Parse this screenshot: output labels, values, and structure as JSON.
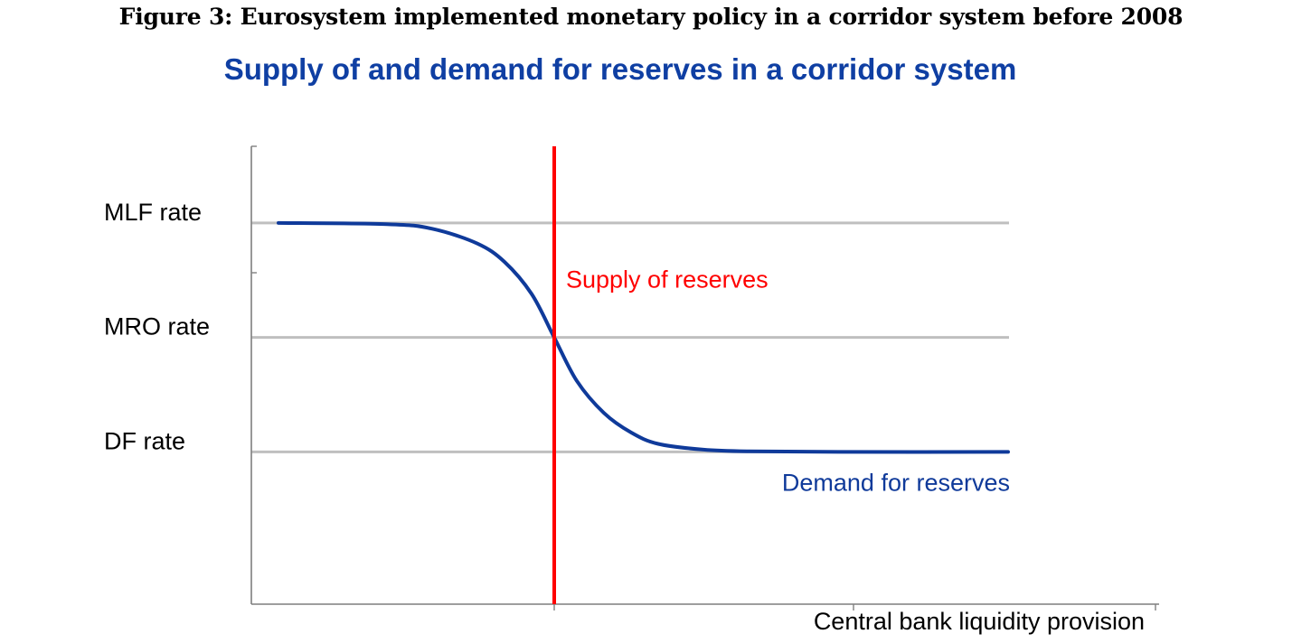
{
  "figure_caption": "Figure 3: Eurosystem implemented monetary policy in a corridor system before 2008",
  "chart_data": {
    "type": "line",
    "title": "Supply of and demand for reserves in a corridor system",
    "xlabel": "Central bank liquidity provision",
    "ylabel": "",
    "grid": false,
    "rate_levels": [
      {
        "label": "MLF rate",
        "level": 2
      },
      {
        "label": "MRO rate",
        "level": 1
      },
      {
        "label": "DF rate",
        "level": 0
      }
    ],
    "ylim": [
      -1.33,
      2.67
    ],
    "xlim": [
      0,
      1
    ],
    "series": [
      {
        "name": "Supply of reserves",
        "kind": "vertical",
        "x": 0.335,
        "color": "#ff0000"
      },
      {
        "name": "Demand for reserves",
        "kind": "curve",
        "x": [
          0.03,
          0.15,
          0.2,
          0.25,
          0.28,
          0.31,
          0.335,
          0.36,
          0.39,
          0.42,
          0.45,
          0.5,
          0.55,
          0.65,
          0.837
        ],
        "y": [
          2.0,
          1.99,
          1.95,
          1.82,
          1.66,
          1.38,
          1.0,
          0.62,
          0.34,
          0.17,
          0.07,
          0.02,
          0.005,
          0.0,
          0.0
        ],
        "color": "#0f3a9a"
      }
    ],
    "colors": {
      "axis": "#7f7f7f",
      "corridor_line": "#bfbfbf"
    }
  }
}
